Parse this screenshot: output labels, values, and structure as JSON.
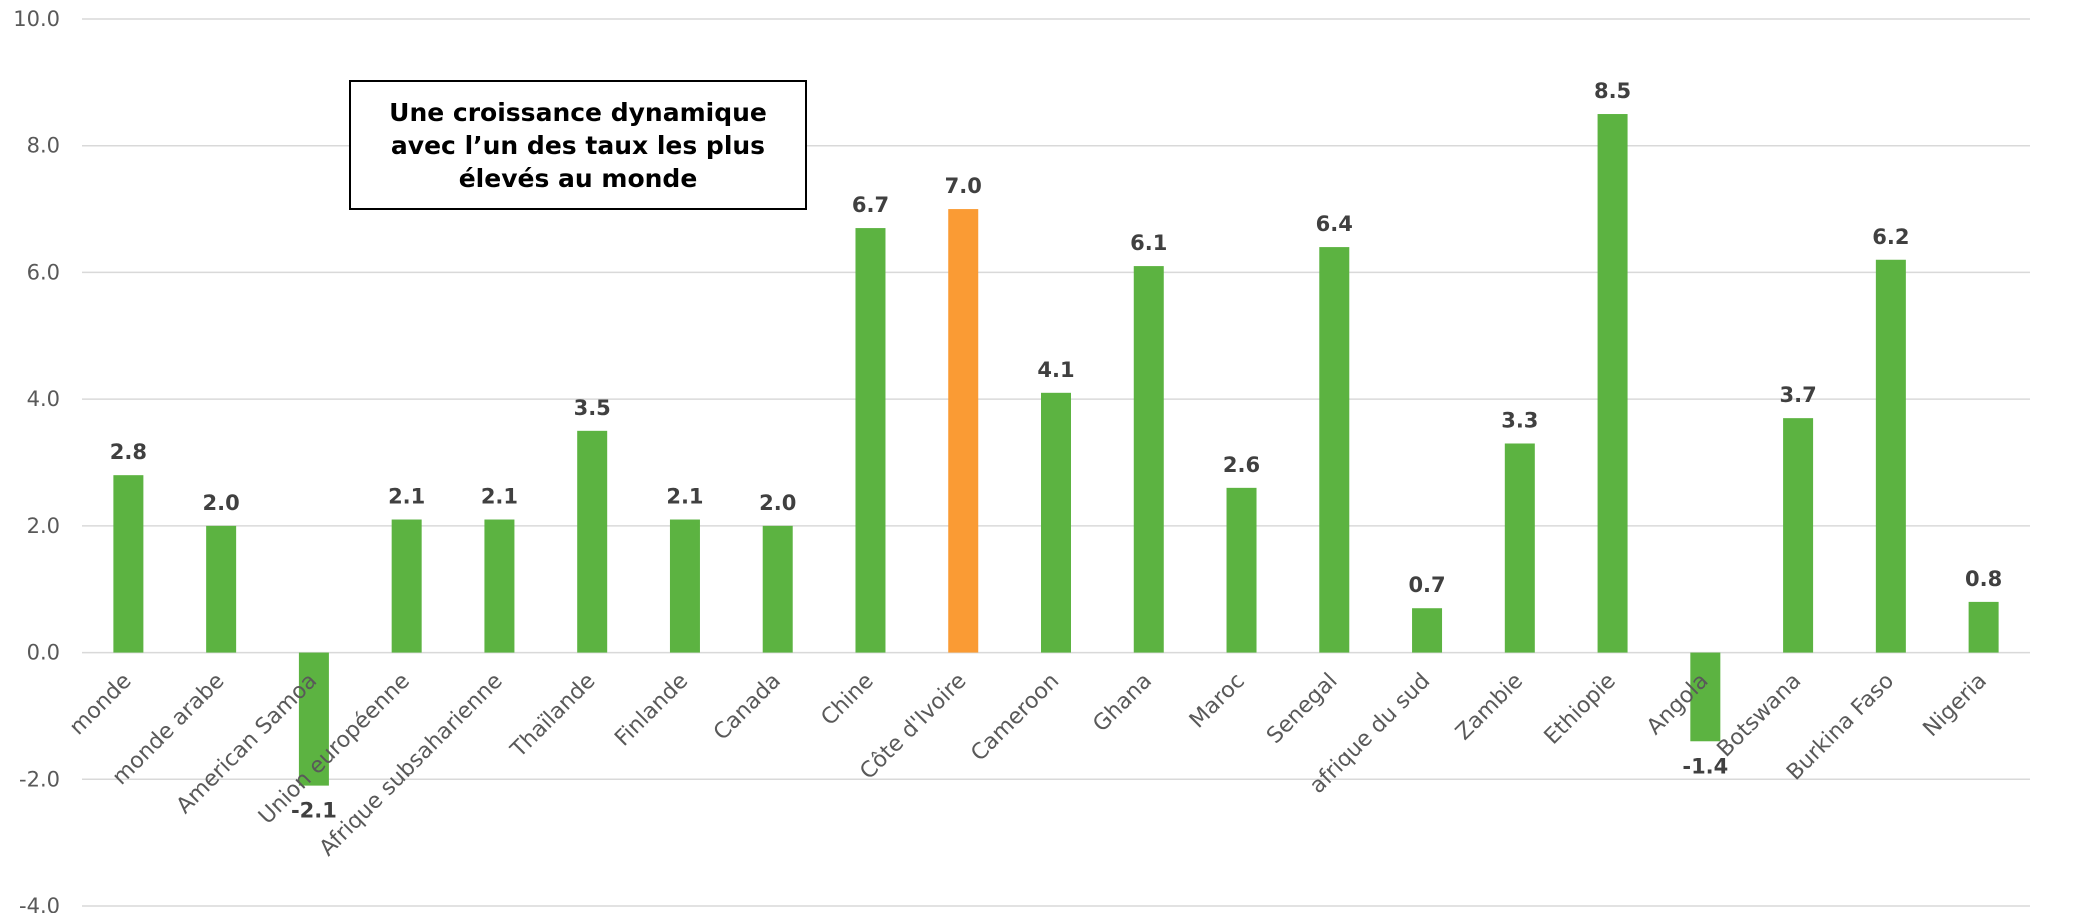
{
  "chart_data": {
    "type": "bar",
    "annotation": "Une croissance dynamique avec l’un des taux les plus élevés au monde",
    "categories": [
      "monde",
      "monde arabe",
      "American Samoa",
      "Union européenne",
      "Afrique subsaharienne",
      "Thaïlande",
      "Finlande",
      "Canada",
      "Chine",
      "Côte d'Ivoire",
      "Cameroon",
      "Ghana",
      "Maroc",
      "Senegal",
      "afrique du sud",
      "Zambie",
      "Ethiopie",
      "Angola",
      "Botswana",
      "Burkina Faso",
      "Nigeria"
    ],
    "values": [
      2.8,
      2.0,
      -2.1,
      2.1,
      2.1,
      3.5,
      2.1,
      2.0,
      6.7,
      7.0,
      4.1,
      6.1,
      2.6,
      6.4,
      0.7,
      3.3,
      8.5,
      -1.4,
      3.7,
      6.2,
      0.8
    ],
    "value_labels": [
      "2.8",
      "2.0",
      "-2.1",
      "2.1",
      "2.1",
      "3.5",
      "2.1",
      "2.0",
      "6.7",
      "7.0",
      "4.1",
      "6.1",
      "2.6",
      "6.4",
      "0.7",
      "3.3",
      "8.5",
      "-1.4",
      "3.7",
      "6.2",
      "0.8"
    ],
    "highlight_category": "Côte d'Ivoire",
    "ylim": [
      -4.0,
      10.0
    ],
    "yticks": [
      "-4.0",
      "-2.0",
      "0.0",
      "2.0",
      "4.0",
      "6.0",
      "8.0",
      "10.0"
    ],
    "grid": true,
    "legend": "none",
    "colors": {
      "bar": "#5cb341",
      "highlight": "#fa9b34",
      "grid": "#d9d9d9",
      "tick_text": "#595959",
      "label_text": "#404040"
    }
  }
}
